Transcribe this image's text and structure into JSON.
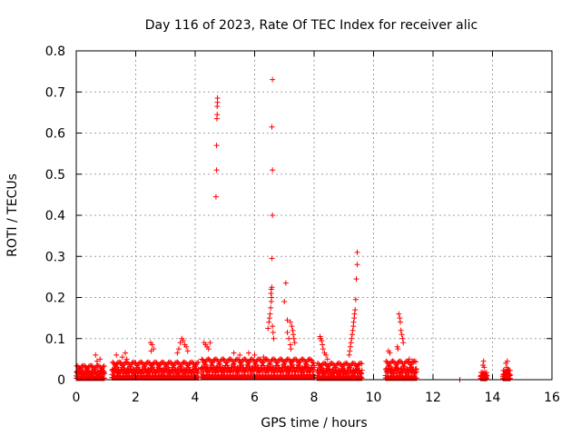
{
  "chart_data": {
    "type": "scatter",
    "title": "Day 116 of 2023, Rate Of TEC Index for receiver alic",
    "xlabel": "GPS time / hours",
    "ylabel": "ROTI / TECUs",
    "xlim": [
      0,
      16
    ],
    "ylim": [
      0,
      0.8
    ],
    "xticks": [
      0,
      2,
      4,
      6,
      8,
      10,
      12,
      14,
      16
    ],
    "yticks": [
      0,
      0.1,
      0.2,
      0.3,
      0.4,
      0.5,
      0.6,
      0.7,
      0.8
    ],
    "xtick_labels": [
      "0",
      "2",
      "4",
      "6",
      "8",
      "10",
      "12",
      "14",
      "16"
    ],
    "ytick_labels": [
      "0",
      "0.1",
      "0.2",
      "0.3",
      "0.4",
      "0.5",
      "0.6",
      "0.7",
      "0.8"
    ],
    "grid": true,
    "marker": "+",
    "color": "#ff0000",
    "series": [
      {
        "name": "ROTI",
        "points": [
          [
            4.7,
            0.445
          ],
          [
            4.72,
            0.51
          ],
          [
            4.72,
            0.57
          ],
          [
            4.73,
            0.635
          ],
          [
            4.74,
            0.645
          ],
          [
            4.74,
            0.665
          ],
          [
            4.75,
            0.675
          ],
          [
            4.75,
            0.685
          ],
          [
            6.6,
            0.73
          ],
          [
            6.58,
            0.615
          ],
          [
            6.6,
            0.51
          ],
          [
            6.6,
            0.4
          ],
          [
            6.58,
            0.295
          ],
          [
            6.45,
            0.125
          ],
          [
            6.48,
            0.14
          ],
          [
            6.5,
            0.15
          ],
          [
            6.52,
            0.16
          ],
          [
            6.54,
            0.175
          ],
          [
            6.56,
            0.19
          ],
          [
            6.57,
            0.2
          ],
          [
            6.55,
            0.21
          ],
          [
            6.56,
            0.22
          ],
          [
            6.58,
            0.225
          ],
          [
            6.6,
            0.13
          ],
          [
            6.62,
            0.115
          ],
          [
            6.64,
            0.1
          ],
          [
            7.05,
            0.235
          ],
          [
            7.0,
            0.19
          ],
          [
            7.1,
            0.145
          ],
          [
            7.2,
            0.14
          ],
          [
            7.25,
            0.13
          ],
          [
            7.28,
            0.12
          ],
          [
            7.3,
            0.11
          ],
          [
            7.32,
            0.1
          ],
          [
            7.35,
            0.09
          ],
          [
            7.1,
            0.115
          ],
          [
            7.15,
            0.1
          ],
          [
            7.2,
            0.085
          ],
          [
            7.22,
            0.075
          ],
          [
            9.45,
            0.31
          ],
          [
            9.45,
            0.28
          ],
          [
            9.42,
            0.245
          ],
          [
            9.4,
            0.195
          ],
          [
            9.38,
            0.17
          ],
          [
            9.36,
            0.16
          ],
          [
            9.35,
            0.15
          ],
          [
            9.33,
            0.14
          ],
          [
            9.32,
            0.13
          ],
          [
            9.3,
            0.12
          ],
          [
            9.28,
            0.11
          ],
          [
            9.26,
            0.1
          ],
          [
            9.24,
            0.09
          ],
          [
            9.22,
            0.08
          ],
          [
            9.2,
            0.07
          ],
          [
            9.18,
            0.06
          ],
          [
            10.85,
            0.16
          ],
          [
            10.88,
            0.15
          ],
          [
            10.9,
            0.14
          ],
          [
            10.92,
            0.12
          ],
          [
            10.95,
            0.11
          ],
          [
            10.98,
            0.1
          ],
          [
            11.0,
            0.09
          ],
          [
            10.8,
            0.08
          ],
          [
            10.82,
            0.075
          ],
          [
            0.65,
            0.06
          ],
          [
            0.7,
            0.045
          ],
          [
            0.8,
            0.05
          ],
          [
            1.35,
            0.06
          ],
          [
            1.55,
            0.055
          ],
          [
            1.65,
            0.065
          ],
          [
            1.7,
            0.05
          ],
          [
            2.5,
            0.09
          ],
          [
            2.55,
            0.085
          ],
          [
            2.6,
            0.075
          ],
          [
            2.52,
            0.07
          ],
          [
            3.5,
            0.09
          ],
          [
            3.55,
            0.1
          ],
          [
            3.6,
            0.095
          ],
          [
            3.65,
            0.085
          ],
          [
            3.7,
            0.08
          ],
          [
            3.75,
            0.07
          ],
          [
            3.45,
            0.075
          ],
          [
            3.4,
            0.065
          ],
          [
            4.3,
            0.09
          ],
          [
            4.35,
            0.085
          ],
          [
            4.4,
            0.08
          ],
          [
            4.45,
            0.075
          ],
          [
            4.5,
            0.09
          ],
          [
            5.3,
            0.065
          ],
          [
            5.5,
            0.06
          ],
          [
            5.8,
            0.065
          ],
          [
            6.0,
            0.06
          ],
          [
            6.3,
            0.055
          ],
          [
            8.2,
            0.105
          ],
          [
            8.22,
            0.1
          ],
          [
            8.25,
            0.095
          ],
          [
            8.28,
            0.085
          ],
          [
            8.3,
            0.075
          ],
          [
            8.35,
            0.065
          ],
          [
            8.4,
            0.06
          ],
          [
            8.45,
            0.05
          ],
          [
            10.5,
            0.07
          ],
          [
            10.55,
            0.065
          ],
          [
            11.2,
            0.05
          ],
          [
            11.3,
            0.045
          ],
          [
            13.7,
            0.045
          ],
          [
            13.68,
            0.035
          ],
          [
            13.72,
            0.03
          ],
          [
            14.5,
            0.045
          ],
          [
            14.45,
            0.04
          ],
          [
            14.48,
            0.03
          ],
          [
            14.52,
            0.025
          ],
          [
            12.9,
            0.0
          ]
        ],
        "dense_bands": [
          {
            "x_from": 0.0,
            "x_to": 0.95,
            "y_base": 0.018,
            "y_amp": 0.025
          },
          {
            "x_from": 1.2,
            "x_to": 4.1,
            "y_base": 0.025,
            "y_amp": 0.03
          },
          {
            "x_from": 4.2,
            "x_to": 8.0,
            "y_base": 0.03,
            "y_amp": 0.035
          },
          {
            "x_from": 8.1,
            "x_to": 9.6,
            "y_base": 0.02,
            "y_amp": 0.03
          },
          {
            "x_from": 10.4,
            "x_to": 11.45,
            "y_base": 0.02,
            "y_amp": 0.035
          },
          {
            "x_from": 13.6,
            "x_to": 13.8,
            "y_base": 0.015,
            "y_amp": 0.01
          },
          {
            "x_from": 14.35,
            "x_to": 14.6,
            "y_base": 0.015,
            "y_amp": 0.015
          }
        ]
      }
    ]
  }
}
